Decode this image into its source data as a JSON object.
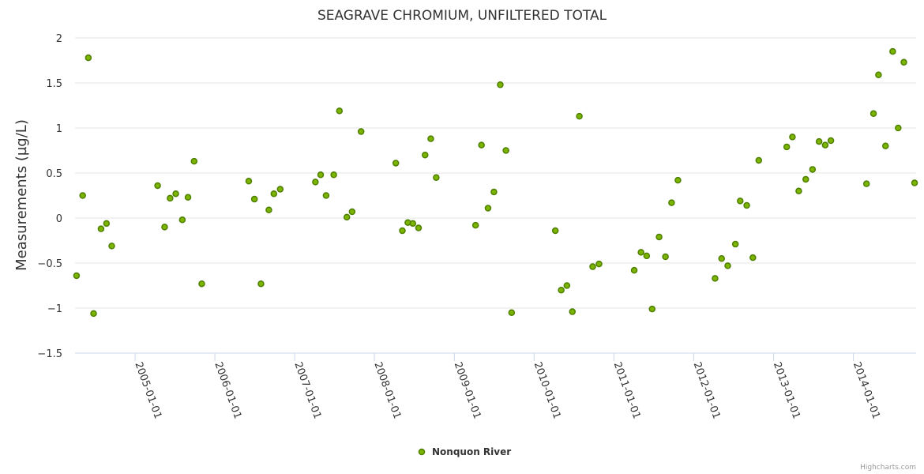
{
  "credits": "Highcharts.com",
  "chart_data": {
    "type": "scatter",
    "title": "SEAGRAVE CHROMIUM, UNFILTERED TOTAL",
    "xlabel": "",
    "ylabel": "Measurements (µg/L)",
    "xlim": [
      "2004-04-01",
      "2014-10-15"
    ],
    "ylim": [
      -1.5,
      2
    ],
    "ytick_step": 0.5,
    "yticks": [
      "2",
      "1.5",
      "1",
      "0.5",
      "0",
      "−0.5",
      "−1",
      "−1.5"
    ],
    "xticks": [
      "2005-01-01",
      "2006-01-01",
      "2007-01-01",
      "2008-01-01",
      "2009-01-01",
      "2010-01-01",
      "2011-01-01",
      "2012-01-01",
      "2013-01-01",
      "2014-01-01"
    ],
    "grid": true,
    "legend_position": "bottom-center",
    "colors": {
      "marker_fill": "#7cb400",
      "marker_stroke": "#4d7f00",
      "grid": "#e6e6e6",
      "axis": "#ccd6eb"
    },
    "series": [
      {
        "name": "Nonquon River",
        "points": [
          [
            "2004-04-08",
            -0.64
          ],
          [
            "2004-05-06",
            0.25
          ],
          [
            "2004-06-01",
            1.78
          ],
          [
            "2004-06-25",
            -1.06
          ],
          [
            "2004-07-29",
            -0.12
          ],
          [
            "2004-08-23",
            -0.06
          ],
          [
            "2004-09-16",
            -0.31
          ],
          [
            "2005-04-14",
            0.36
          ],
          [
            "2005-05-16",
            -0.1
          ],
          [
            "2005-06-10",
            0.22
          ],
          [
            "2005-07-06",
            0.27
          ],
          [
            "2005-08-05",
            -0.02
          ],
          [
            "2005-08-31",
            0.23
          ],
          [
            "2005-09-28",
            0.63
          ],
          [
            "2005-11-02",
            -0.73
          ],
          [
            "2006-06-05",
            0.41
          ],
          [
            "2006-07-01",
            0.21
          ],
          [
            "2006-07-31",
            -0.73
          ],
          [
            "2006-09-05",
            0.09
          ],
          [
            "2006-09-28",
            0.27
          ],
          [
            "2006-10-27",
            0.32
          ],
          [
            "2007-04-06",
            0.4
          ],
          [
            "2007-04-30",
            0.48
          ],
          [
            "2007-05-25",
            0.25
          ],
          [
            "2007-06-29",
            0.48
          ],
          [
            "2007-07-25",
            1.19
          ],
          [
            "2007-08-28",
            0.01
          ],
          [
            "2007-09-21",
            0.07
          ],
          [
            "2007-11-01",
            0.96
          ],
          [
            "2008-04-08",
            0.61
          ],
          [
            "2008-05-08",
            -0.14
          ],
          [
            "2008-06-02",
            -0.05
          ],
          [
            "2008-06-25",
            -0.06
          ],
          [
            "2008-07-21",
            -0.11
          ],
          [
            "2008-08-20",
            0.7
          ],
          [
            "2008-09-15",
            0.88
          ],
          [
            "2008-10-10",
            0.45
          ],
          [
            "2009-04-08",
            -0.08
          ],
          [
            "2009-05-05",
            0.81
          ],
          [
            "2009-06-04",
            0.11
          ],
          [
            "2009-07-01",
            0.29
          ],
          [
            "2009-07-30",
            1.48
          ],
          [
            "2009-08-25",
            0.75
          ],
          [
            "2009-09-20",
            -1.05
          ],
          [
            "2010-04-08",
            -0.14
          ],
          [
            "2010-05-05",
            -0.8
          ],
          [
            "2010-05-31",
            -0.75
          ],
          [
            "2010-06-25",
            -1.04
          ],
          [
            "2010-07-27",
            1.13
          ],
          [
            "2010-09-26",
            -0.54
          ],
          [
            "2010-10-25",
            -0.51
          ],
          [
            "2011-04-04",
            -0.58
          ],
          [
            "2011-05-05",
            -0.38
          ],
          [
            "2011-05-31",
            -0.42
          ],
          [
            "2011-06-25",
            -1.01
          ],
          [
            "2011-07-27",
            -0.21
          ],
          [
            "2011-08-25",
            -0.43
          ],
          [
            "2011-09-22",
            0.17
          ],
          [
            "2011-10-21",
            0.42
          ],
          [
            "2012-04-08",
            -0.67
          ],
          [
            "2012-05-08",
            -0.45
          ],
          [
            "2012-06-05",
            -0.53
          ],
          [
            "2012-07-10",
            -0.29
          ],
          [
            "2012-08-01",
            0.19
          ],
          [
            "2012-08-31",
            0.14
          ],
          [
            "2012-09-28",
            -0.44
          ],
          [
            "2012-10-25",
            0.64
          ],
          [
            "2013-03-02",
            0.79
          ],
          [
            "2013-03-28",
            0.9
          ],
          [
            "2013-04-26",
            0.3
          ],
          [
            "2013-05-28",
            0.43
          ],
          [
            "2013-06-28",
            0.54
          ],
          [
            "2013-07-28",
            0.85
          ],
          [
            "2013-08-25",
            0.81
          ],
          [
            "2013-09-20",
            0.86
          ],
          [
            "2014-03-02",
            0.38
          ],
          [
            "2014-04-03",
            1.16
          ],
          [
            "2014-04-26",
            1.59
          ],
          [
            "2014-05-28",
            0.8
          ],
          [
            "2014-06-30",
            1.85
          ],
          [
            "2014-07-25",
            1.0
          ],
          [
            "2014-08-20",
            1.73
          ],
          [
            "2014-10-08",
            0.39
          ]
        ]
      }
    ]
  }
}
